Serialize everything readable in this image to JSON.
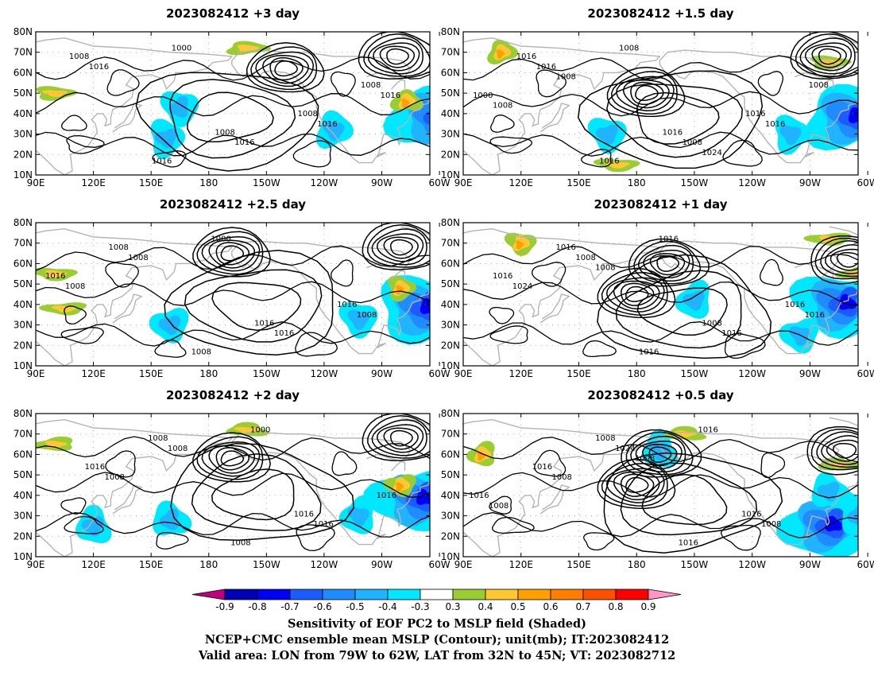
{
  "colors": {
    "shade_levels": [
      "#c0007f",
      "#0000b4",
      "#0000f5",
      "#1a5cff",
      "#1e8cff",
      "#1fb4ff",
      "#00e8ff",
      "#ffffff",
      "#9acd32",
      "#ffc832",
      "#ffa000",
      "#ff7d00",
      "#ff5000",
      "#ff0000",
      "#ff96c8"
    ],
    "land": "#b4b4b4",
    "contour": "#000000"
  },
  "icons": [
    "colorbar-left-triangle",
    "colorbar-right-triangle"
  ],
  "map_data": {
    "projection": "cylindrical-equidistant",
    "lon_ticks": [
      "90E",
      "120E",
      "150E",
      "180",
      "150W",
      "120W",
      "90W",
      "60W"
    ],
    "lat_ticks": [
      "80N",
      "70N",
      "60N",
      "50N",
      "40N",
      "30N",
      "20N",
      "10N"
    ],
    "lon_range": [
      90,
      295
    ],
    "lat_range": [
      10,
      80
    ],
    "panels": [
      {
        "title": "2023082412  +3 day",
        "contour_labels": [
          "1008",
          "1008",
          "1008",
          "1016",
          "1008",
          "1016",
          "1016",
          "1016",
          "1000",
          "1016"
        ],
        "lows": [
          [
            220,
            62
          ],
          [
            278,
            68
          ]
        ],
        "high": [
          190,
          38
        ],
        "neg": [
          [
            297,
            38
          ],
          [
            245,
            32
          ],
          [
            158,
            28
          ],
          [
            165,
            43
          ]
        ],
        "pos": [
          [
            283,
            46
          ],
          [
            200,
            72
          ],
          [
            100,
            50
          ]
        ]
      },
      {
        "title": "2023082412  +1.5 day",
        "contour_labels": [
          "1016",
          "1016",
          "1008",
          "1016",
          "1016",
          "1016",
          "1008",
          "1000",
          "1008",
          "1016",
          "1008",
          "1024",
          "1008"
        ],
        "lows": [
          [
            185,
            50
          ],
          [
            280,
            68
          ]
        ],
        "high": [
          200,
          38
        ],
        "neg": [
          [
            290,
            38
          ],
          [
            260,
            30
          ],
          [
            165,
            30
          ]
        ],
        "pos": [
          [
            110,
            70
          ],
          [
            280,
            65
          ],
          [
            170,
            15
          ]
        ]
      },
      {
        "title": "2023082412  +2.5 day",
        "contour_labels": [
          "1008",
          "1016",
          "1016",
          "1008",
          "1016",
          "1008",
          "1016",
          "1008",
          "1000",
          "1008"
        ],
        "lows": [
          [
            192,
            65
          ],
          [
            280,
            68
          ]
        ],
        "high": [
          205,
          40
        ],
        "neg": [
          [
            290,
            38
          ],
          [
            258,
            33
          ],
          [
            160,
            30
          ]
        ],
        "pos": [
          [
            280,
            48
          ],
          [
            100,
            55
          ],
          [
            105,
            38
          ]
        ]
      },
      {
        "title": "2023082412  +1 day",
        "contour_labels": [
          "1016",
          "1008",
          "1016",
          "1016",
          "1016",
          "1008",
          "1016",
          "1024",
          "1016",
          "1016",
          "1008"
        ],
        "lows": [
          [
            180,
            45
          ],
          [
            196,
            60
          ],
          [
            290,
            62
          ]
        ],
        "high": [
          205,
          37
        ],
        "neg": [
          [
            285,
            40
          ],
          [
            265,
            25
          ],
          [
            210,
            42
          ]
        ],
        "pos": [
          [
            120,
            70
          ],
          [
            280,
            72
          ],
          [
            295,
            55
          ]
        ]
      },
      {
        "title": "2023082412  +2 day",
        "contour_labels": [
          "1008",
          "1016",
          "1016",
          "1008",
          "1016",
          "1008",
          "1016",
          "1008",
          "1000"
        ],
        "lows": [
          [
            192,
            58
          ],
          [
            280,
            68
          ]
        ],
        "high": [
          205,
          40
        ],
        "neg": [
          [
            288,
            38
          ],
          [
            258,
            30
          ],
          [
            120,
            25
          ],
          [
            160,
            28
          ]
        ],
        "pos": [
          [
            280,
            45
          ],
          [
            100,
            65
          ],
          [
            200,
            72
          ]
        ]
      },
      {
        "title": "2023082412  +0.5 day",
        "contour_labels": [
          "1008",
          "1016",
          "1016",
          "1016",
          "1016",
          "1024",
          "1008",
          "1008",
          "1016",
          "1008",
          "1008"
        ],
        "lows": [
          [
            180,
            45
          ],
          [
            192,
            60
          ],
          [
            288,
            62
          ]
        ],
        "high": [
          205,
          37
        ],
        "neg": [
          [
            278,
            25
          ],
          [
            192,
            62
          ],
          [
            280,
            42
          ],
          [
            295,
            30
          ]
        ],
        "pos": [
          [
            100,
            60
          ],
          [
            205,
            70
          ],
          [
            285,
            55
          ]
        ]
      }
    ]
  },
  "colorbar": {
    "labels": [
      "-0.9",
      "-0.8",
      "-0.7",
      "-0.6",
      "-0.5",
      "-0.4",
      "-0.3",
      "0.3",
      "0.4",
      "0.5",
      "0.6",
      "0.7",
      "0.8",
      "0.9"
    ]
  },
  "captions": {
    "line1": "Sensitivity of EOF PC2 to MSLP field (Shaded)",
    "line2": "NCEP+CMC ensemble mean MSLP (Contour); unit(mb); IT:2023082412",
    "line3": "Valid area: LON from 79W to 62W, LAT from 32N to 45N; VT: 2023082712"
  }
}
